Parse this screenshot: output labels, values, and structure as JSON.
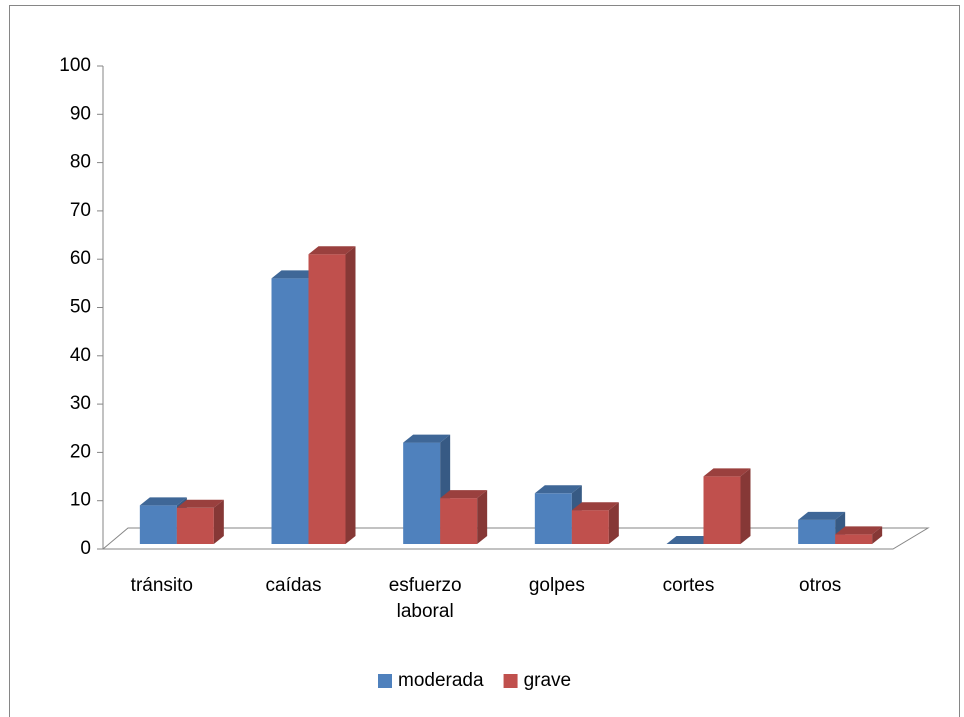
{
  "chart_data": {
    "type": "bar3d",
    "categories": [
      "tránsito",
      "caídas",
      "esfuerzo laboral",
      "golpes",
      "cortes",
      "otros"
    ],
    "series": [
      {
        "name": "moderada",
        "color": "#4f81bd",
        "values": [
          8,
          55,
          21,
          10.5,
          0,
          5
        ]
      },
      {
        "name": "grave",
        "color": "#c0504d",
        "values": [
          7.5,
          60,
          9.5,
          7,
          14,
          2
        ]
      }
    ],
    "ylim": [
      0,
      100
    ],
    "yticks": [
      0,
      10,
      20,
      30,
      40,
      50,
      60,
      70,
      80,
      90,
      100
    ],
    "legend": "bottom"
  }
}
